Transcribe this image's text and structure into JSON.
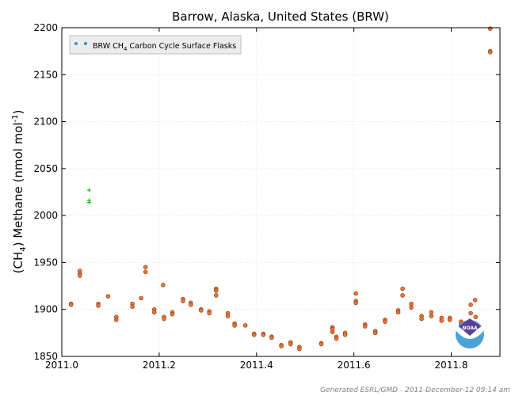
{
  "chart_data": {
    "type": "scatter",
    "title": "Barrow, Alaska, United States (BRW)",
    "ylabel_parts": {
      "pre_paren": "(CH",
      "sub": "4",
      "post_paren": ") Methane (nmol mol",
      "sup": "-1",
      "end": ")"
    },
    "xlim": [
      2011.0,
      2011.9
    ],
    "ylim": [
      1850,
      2200
    ],
    "x_ticks": [
      {
        "value": 2011.0,
        "label": "2011.0"
      },
      {
        "value": 2011.2,
        "label": "2011.2"
      },
      {
        "value": 2011.4,
        "label": "2011.4"
      },
      {
        "value": 2011.6,
        "label": "2011.6"
      },
      {
        "value": 2011.8,
        "label": "2011.8"
      }
    ],
    "y_ticks": [
      {
        "value": 1850,
        "label": "1850"
      },
      {
        "value": 1900,
        "label": "1900"
      },
      {
        "value": 1950,
        "label": "1950"
      },
      {
        "value": 2000,
        "label": "2000"
      },
      {
        "value": 2050,
        "label": "2050"
      },
      {
        "value": 2100,
        "label": "2100"
      },
      {
        "value": 2150,
        "label": "2150"
      },
      {
        "value": 2200,
        "label": "2200"
      }
    ],
    "grid": true,
    "legend_position": "top-left",
    "legend": {
      "pre": "BRW CH",
      "sub": "4",
      "post": " Carbon Cycle Surface Flasks"
    },
    "colors": {
      "marker_fill": "#e8773a",
      "marker_edge": "#8b3a10",
      "flagged": "#00aa00",
      "legend_dot": "#3a8fd0"
    },
    "series": [
      {
        "name": "BRW CH4 Carbon Cycle Surface Flasks",
        "points": [
          [
            2011.019,
            1906
          ],
          [
            2011.019,
            1905
          ],
          [
            2011.037,
            1941
          ],
          [
            2011.037,
            1938
          ],
          [
            2011.037,
            1936
          ],
          [
            2011.075,
            1906
          ],
          [
            2011.075,
            1904
          ],
          [
            2011.095,
            1914
          ],
          [
            2011.112,
            1892
          ],
          [
            2011.112,
            1889
          ],
          [
            2011.145,
            1906
          ],
          [
            2011.145,
            1903
          ],
          [
            2011.163,
            1912
          ],
          [
            2011.172,
            1945
          ],
          [
            2011.172,
            1940
          ],
          [
            2011.19,
            1900
          ],
          [
            2011.19,
            1897
          ],
          [
            2011.208,
            1926
          ],
          [
            2011.21,
            1892
          ],
          [
            2011.21,
            1890
          ],
          [
            2011.227,
            1897
          ],
          [
            2011.227,
            1895
          ],
          [
            2011.249,
            1911
          ],
          [
            2011.249,
            1909
          ],
          [
            2011.265,
            1907
          ],
          [
            2011.265,
            1905
          ],
          [
            2011.286,
            1900
          ],
          [
            2011.286,
            1899
          ],
          [
            2011.303,
            1898
          ],
          [
            2011.303,
            1896
          ],
          [
            2011.317,
            1922
          ],
          [
            2011.317,
            1920
          ],
          [
            2011.317,
            1915
          ],
          [
            2011.341,
            1896
          ],
          [
            2011.341,
            1893
          ],
          [
            2011.355,
            1885
          ],
          [
            2011.355,
            1883
          ],
          [
            2011.377,
            1883
          ],
          [
            2011.395,
            1874
          ],
          [
            2011.395,
            1873
          ],
          [
            2011.414,
            1874
          ],
          [
            2011.414,
            1873
          ],
          [
            2011.431,
            1871
          ],
          [
            2011.431,
            1870
          ],
          [
            2011.451,
            1862
          ],
          [
            2011.451,
            1861
          ],
          [
            2011.47,
            1865
          ],
          [
            2011.47,
            1863
          ],
          [
            2011.488,
            1860
          ],
          [
            2011.488,
            1858
          ],
          [
            2011.533,
            1864
          ],
          [
            2011.533,
            1863
          ],
          [
            2011.556,
            1881
          ],
          [
            2011.556,
            1879
          ],
          [
            2011.556,
            1876
          ],
          [
            2011.564,
            1871
          ],
          [
            2011.564,
            1869
          ],
          [
            2011.582,
            1875
          ],
          [
            2011.582,
            1873
          ],
          [
            2011.604,
            1917
          ],
          [
            2011.604,
            1909
          ],
          [
            2011.604,
            1907
          ],
          [
            2011.623,
            1884
          ],
          [
            2011.623,
            1882
          ],
          [
            2011.644,
            1877
          ],
          [
            2011.644,
            1875
          ],
          [
            2011.664,
            1889
          ],
          [
            2011.664,
            1887
          ],
          [
            2011.691,
            1899
          ],
          [
            2011.691,
            1897
          ],
          [
            2011.7,
            1922
          ],
          [
            2011.7,
            1915
          ],
          [
            2011.718,
            1906
          ],
          [
            2011.718,
            1902
          ],
          [
            2011.739,
            1893
          ],
          [
            2011.739,
            1890
          ],
          [
            2011.759,
            1897
          ],
          [
            2011.759,
            1893
          ],
          [
            2011.78,
            1891
          ],
          [
            2011.78,
            1888
          ],
          [
            2011.797,
            1891
          ],
          [
            2011.797,
            1889
          ],
          [
            2011.82,
            1887
          ],
          [
            2011.82,
            1885
          ],
          [
            2011.84,
            1905
          ],
          [
            2011.84,
            1896
          ],
          [
            2011.849,
            1910
          ],
          [
            2011.85,
            1892
          ],
          [
            2011.88,
            2199
          ],
          [
            2011.88,
            2175
          ],
          [
            2011.88,
            2174
          ]
        ]
      },
      {
        "name": "flagged",
        "marker": "plus",
        "points": [
          [
            2011.056,
            2027
          ],
          [
            2011.056,
            2016
          ],
          [
            2011.056,
            2014
          ]
        ]
      }
    ]
  },
  "footer": {
    "text": "Generated ESRL/GMD - 2011-December-12 09:14 am"
  },
  "logo": {
    "text": "NOAA"
  }
}
